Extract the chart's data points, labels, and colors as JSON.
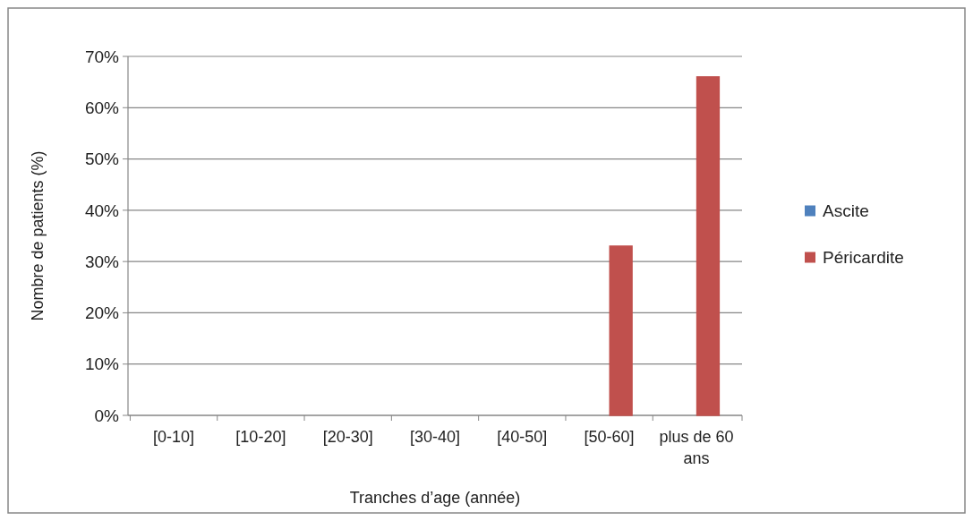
{
  "chart_data": {
    "type": "bar",
    "xlabel": "Tranches d’age (année)",
    "ylabel": "Nombre de patients (%)",
    "categories": [
      "[0-10]",
      "[10-20]",
      "[20-30]",
      "[30-40]",
      "[40-50]",
      "[50-60]",
      "plus de 60 ans"
    ],
    "series": [
      {
        "name": "Ascite",
        "color": "#4f81bd",
        "values": [
          0,
          0,
          0,
          0,
          0,
          0,
          0
        ]
      },
      {
        "name": "Péricardite",
        "color": "#c0504d",
        "values": [
          0,
          0,
          0,
          0,
          0,
          33,
          66
        ]
      }
    ],
    "ylim": [
      0,
      70
    ],
    "yticks": [
      {
        "value": 0,
        "label": "0%"
      },
      {
        "value": 10,
        "label": "10%"
      },
      {
        "value": 20,
        "label": "20%"
      },
      {
        "value": 30,
        "label": "30%"
      },
      {
        "value": 40,
        "label": "40%"
      },
      {
        "value": 50,
        "label": "50%"
      },
      {
        "value": 60,
        "label": "60%"
      },
      {
        "value": 70,
        "label": "70%"
      }
    ],
    "grid": "y",
    "legend": "right"
  }
}
